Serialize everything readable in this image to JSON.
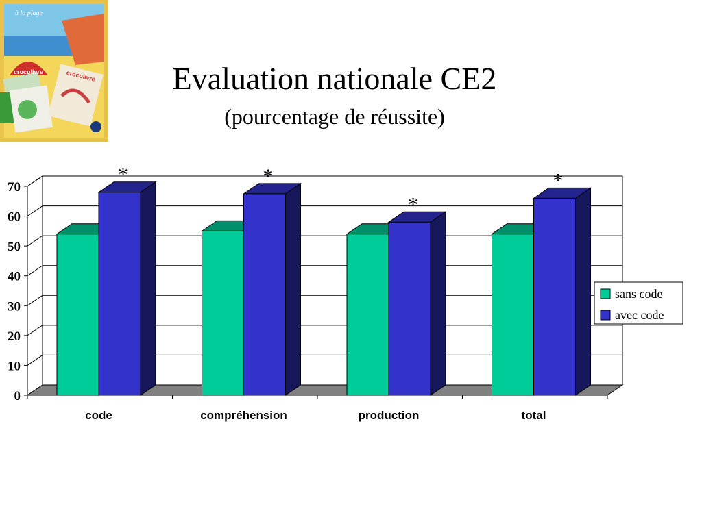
{
  "slide": {
    "title": "Evaluation nationale CE2",
    "subtitle": "(pourcentage de réussite)"
  },
  "photo": {
    "icon": "book-covers-photo",
    "title_text": "à la plage",
    "book_brand": "crocolivre"
  },
  "chart_data": {
    "type": "bar",
    "categories": [
      "code",
      "compréhension",
      "production",
      "total"
    ],
    "series": [
      {
        "name": "sans code",
        "values": [
          54,
          55,
          54,
          54
        ],
        "color": "#00cc99"
      },
      {
        "name": "avec code",
        "values": [
          68,
          67.5,
          58,
          66
        ],
        "color": "#3333cc"
      }
    ],
    "significance_markers": [
      "*",
      "*",
      "*",
      "*"
    ],
    "ylim": [
      0,
      70
    ],
    "yticks": [
      0,
      10,
      20,
      30,
      40,
      50,
      60,
      70
    ],
    "grid": true,
    "legend_position": "right",
    "three_d": true
  }
}
